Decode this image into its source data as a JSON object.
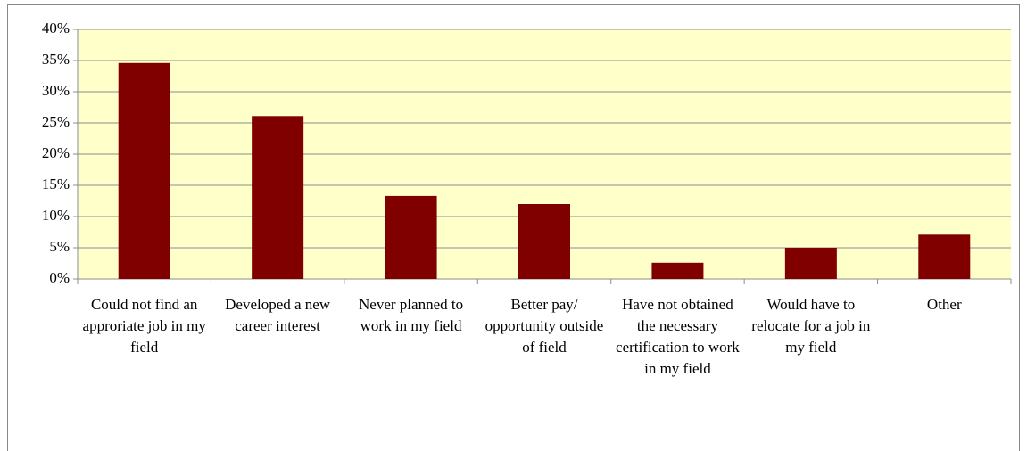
{
  "chart_data": {
    "type": "bar",
    "categories": [
      "Could not find an approriate job in my field",
      "Developed a new career interest",
      "Never planned to work in my field",
      "Better pay/ opportunity outside of field",
      "Have not obtained the necessary certification to work in my field",
      "Would have to relocate for a job in my field",
      "Other"
    ],
    "values": [
      34.6,
      26.1,
      13.3,
      12.0,
      2.6,
      5.0,
      7.1
    ],
    "color": "#800000",
    "ylim": [
      0,
      40
    ],
    "yticks": [
      {
        "value": 0,
        "label": "0%"
      },
      {
        "value": 5,
        "label": "5%"
      },
      {
        "value": 10,
        "label": "10%"
      },
      {
        "value": 15,
        "label": "15%"
      },
      {
        "value": 20,
        "label": "20%"
      },
      {
        "value": 25,
        "label": "25%"
      },
      {
        "value": 30,
        "label": "30%"
      },
      {
        "value": 35,
        "label": "35%"
      },
      {
        "value": 40,
        "label": "40%"
      }
    ],
    "grid": true
  }
}
